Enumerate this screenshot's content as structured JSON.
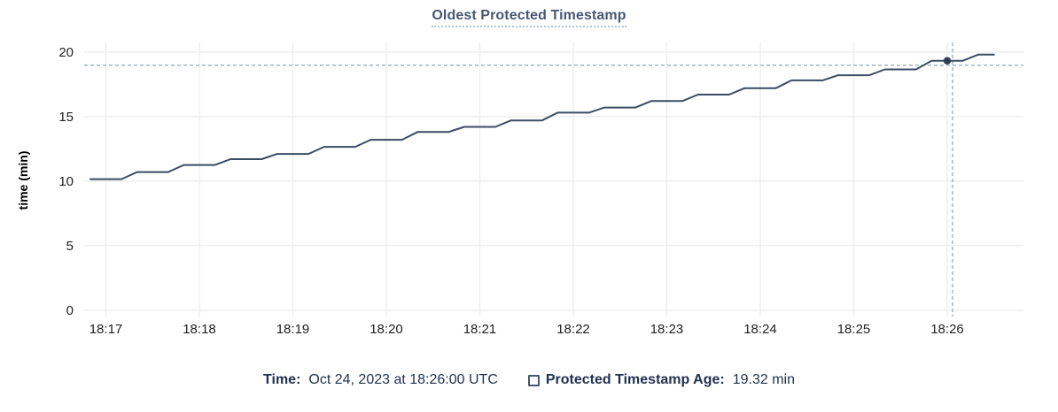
{
  "title": "Oldest Protected Timestamp",
  "footer": {
    "time_label": "Time:",
    "time_value": "Oct 24, 2023 at 18:26:00 UTC",
    "age_label": "Protected Timestamp Age:",
    "age_value": "19.32 min",
    "checkbox_icon": "empty-square"
  },
  "colors": {
    "title": "#475872",
    "title_underline": "#b4c4d4",
    "line": "#3b4c63",
    "dot": "#2f3e55",
    "crosshair": "#a2b5c6",
    "grid": "#efefef",
    "tick_text": "#222222",
    "axis_label_text": "#000000",
    "footer_text": "#1f3050"
  },
  "chart_data": {
    "type": "line",
    "title": "Oldest Protected Timestamp",
    "xlabel": "",
    "ylabel": "time (min)",
    "ylim": [
      0,
      20
    ],
    "yticks": [
      0,
      5,
      10,
      15,
      20
    ],
    "xticks": [
      "18:17",
      "18:18",
      "18:19",
      "18:20",
      "18:21",
      "18:22",
      "18:23",
      "18:24",
      "18:25",
      "18:26"
    ],
    "grid": true,
    "legend_position": "bottom",
    "crosshair": {
      "time": "18:26:00",
      "value_min": 19.32
    },
    "series": [
      {
        "name": "Protected Timestamp Age",
        "unit": "min",
        "x": [
          "18:16:50",
          "18:17:00",
          "18:17:10",
          "18:17:20",
          "18:17:30",
          "18:17:40",
          "18:17:50",
          "18:18:00",
          "18:18:10",
          "18:18:20",
          "18:18:30",
          "18:18:40",
          "18:18:50",
          "18:19:00",
          "18:19:10",
          "18:19:20",
          "18:19:30",
          "18:19:40",
          "18:19:50",
          "18:20:00",
          "18:20:10",
          "18:20:20",
          "18:20:30",
          "18:20:40",
          "18:20:50",
          "18:21:00",
          "18:21:10",
          "18:21:20",
          "18:21:30",
          "18:21:40",
          "18:21:50",
          "18:22:00",
          "18:22:10",
          "18:22:20",
          "18:22:30",
          "18:22:40",
          "18:22:50",
          "18:23:00",
          "18:23:10",
          "18:23:20",
          "18:23:30",
          "18:23:40",
          "18:23:50",
          "18:24:00",
          "18:24:10",
          "18:24:20",
          "18:24:30",
          "18:24:40",
          "18:24:50",
          "18:25:00",
          "18:25:10",
          "18:25:20",
          "18:25:30",
          "18:25:40",
          "18:25:50",
          "18:26:00",
          "18:26:10",
          "18:26:20",
          "18:26:30"
        ],
        "values": [
          10.15,
          10.15,
          10.15,
          10.7,
          10.7,
          10.7,
          11.25,
          11.25,
          11.25,
          11.7,
          11.7,
          11.7,
          12.1,
          12.1,
          12.1,
          12.65,
          12.65,
          12.65,
          13.2,
          13.2,
          13.2,
          13.8,
          13.8,
          13.8,
          14.2,
          14.2,
          14.2,
          14.7,
          14.7,
          14.7,
          15.3,
          15.3,
          15.3,
          15.7,
          15.7,
          15.7,
          16.2,
          16.2,
          16.2,
          16.7,
          16.7,
          16.7,
          17.2,
          17.2,
          17.2,
          17.8,
          17.8,
          17.8,
          18.2,
          18.2,
          18.2,
          18.65,
          18.65,
          18.65,
          19.32,
          19.32,
          19.32,
          19.8,
          19.8
        ]
      }
    ]
  }
}
